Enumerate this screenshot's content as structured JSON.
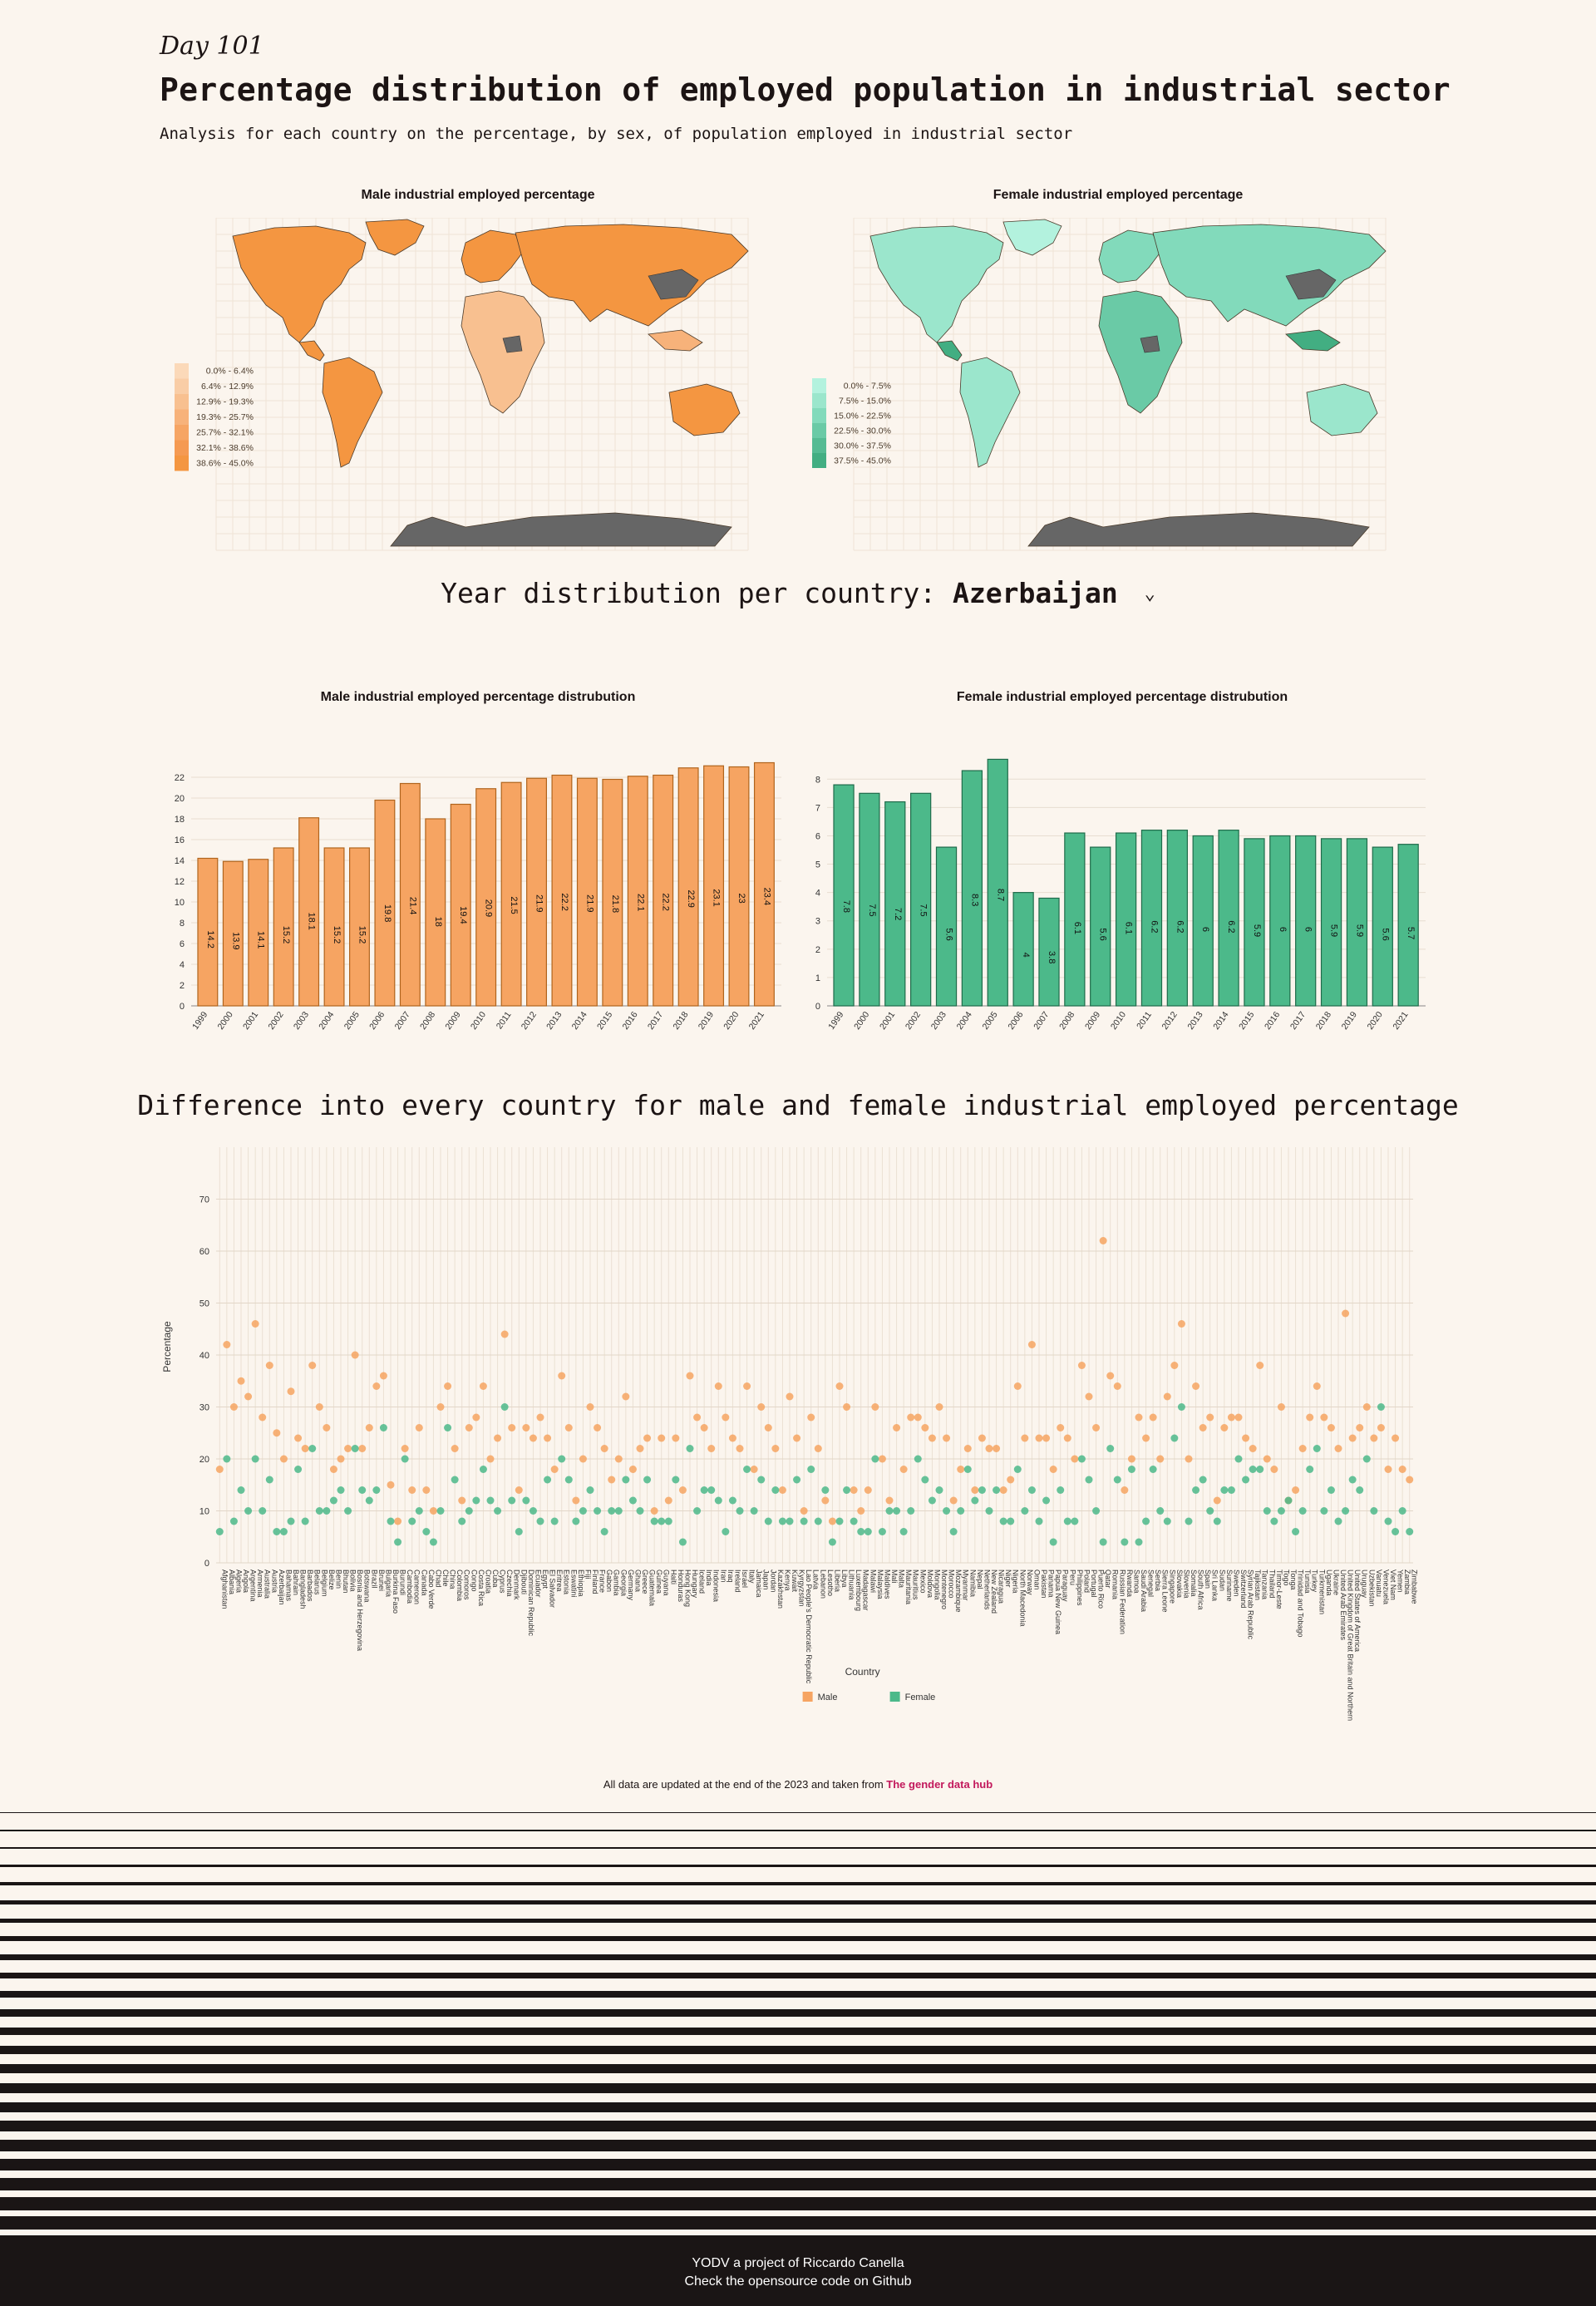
{
  "header": {
    "day": "Day 101",
    "title": "Percentage distribution of employed population in industrial sector",
    "subtitle": "Analysis for each country on the percentage, by sex, of population employed in industrial sector"
  },
  "maps": {
    "male": {
      "title": "Male industrial employed percentage",
      "legend": [
        "0.0% - 6.4%",
        "6.4% - 12.9%",
        "12.9% - 19.3%",
        "19.3% - 25.7%",
        "25.7% - 32.1%",
        "32.1% - 38.6%",
        "38.6% - 45.0%"
      ],
      "colors": [
        "#fbd9b9",
        "#f9cda6",
        "#f8c090",
        "#f7b27a",
        "#f6a564",
        "#f59a52",
        "#f49641"
      ]
    },
    "female": {
      "title": "Female industrial employed percentage",
      "legend": [
        "0.0% - 7.5%",
        "7.5% - 15.0%",
        "15.0% - 22.5%",
        "22.5% - 30.0%",
        "30.0% - 37.5%",
        "37.5% - 45.0%"
      ],
      "colors": [
        "#b3f2de",
        "#9be6cc",
        "#82dabb",
        "#6acaa6",
        "#55bb93",
        "#42ae82"
      ]
    },
    "nodata_color": "#666666"
  },
  "selector": {
    "label": "Year distribution per country:",
    "value": "Azerbaijan"
  },
  "colors": {
    "male": "#f6a462",
    "male_stroke": "#b0641d",
    "female": "#4cb98a",
    "female_stroke": "#1f6b4a"
  },
  "chart_data": [
    {
      "type": "bar",
      "title": "Male industrial employed percentage distrubution",
      "categories": [
        "1999",
        "2000",
        "2001",
        "2002",
        "2003",
        "2004",
        "2005",
        "2006",
        "2007",
        "2008",
        "2009",
        "2010",
        "2011",
        "2012",
        "2013",
        "2014",
        "2015",
        "2016",
        "2017",
        "2018",
        "2019",
        "2020",
        "2021"
      ],
      "values": [
        14.2,
        13.9,
        14.1,
        15.2,
        18.1,
        15.2,
        15.2,
        19.8,
        21.4,
        18,
        19.4,
        20.9,
        21.5,
        21.9,
        22.2,
        21.9,
        21.8,
        22.1,
        22.2,
        22.9,
        23.1,
        23,
        23.4
      ],
      "yticks": [
        0,
        2,
        4,
        6,
        8,
        10,
        12,
        14,
        16,
        18,
        20,
        22
      ],
      "ylim": [
        0,
        24
      ]
    },
    {
      "type": "bar",
      "title": "Female industrial employed percentage distrubution",
      "categories": [
        "1999",
        "2000",
        "2001",
        "2002",
        "2003",
        "2004",
        "2005",
        "2006",
        "2007",
        "2008",
        "2009",
        "2010",
        "2011",
        "2012",
        "2013",
        "2014",
        "2015",
        "2016",
        "2017",
        "2018",
        "2019",
        "2020",
        "2021"
      ],
      "values": [
        7.8,
        7.5,
        7.2,
        7.5,
        5.6,
        8.3,
        8.7,
        4,
        3.8,
        6.1,
        5.6,
        6.1,
        6.2,
        6.2,
        6,
        6.2,
        5.9,
        6,
        6,
        5.9,
        5.9,
        5.6,
        5.7
      ],
      "yticks": [
        0,
        1,
        2,
        3,
        4,
        5,
        6,
        7,
        8
      ],
      "ylim": [
        0,
        8.8
      ]
    },
    {
      "type": "scatter",
      "title": "Difference into every country for male and female industrial employed percentage",
      "xlabel": "Country",
      "ylabel": "Percentage",
      "yticks": [
        0,
        10,
        20,
        30,
        40,
        50,
        60,
        70
      ],
      "ylim": [
        0,
        80
      ],
      "legend": [
        "Male",
        "Female"
      ],
      "categories": [
        "Afghanistan",
        "Albania",
        "Algeria",
        "Angola",
        "Argentina",
        "Armenia",
        "Australia",
        "Austria",
        "Azerbaijan",
        "Bahamas",
        "Bahrain",
        "Bangladesh",
        "Barbados",
        "Belarus",
        "Belgium",
        "Belize",
        "Benin",
        "Bhutan",
        "Bolivia",
        "Bosnia and Herzegovina",
        "Botswana",
        "Brazil",
        "Brunei",
        "Bulgaria",
        "Burkina Faso",
        "Burundi",
        "Cambodia",
        "Cameroon",
        "Canada",
        "Cabo Verde",
        "Chad",
        "Chile",
        "China",
        "Colombia",
        "Comoros",
        "Congo",
        "Costa Rica",
        "Croatia",
        "Cuba",
        "Cyprus",
        "Czechia",
        "Denmark",
        "Djibouti",
        "Dominican Republic",
        "Ecuador",
        "Egypt",
        "El Salvador",
        "Eritrea",
        "Estonia",
        "Eswatini",
        "Ethiopia",
        "Fiji",
        "Finland",
        "France",
        "Gabon",
        "Gambia",
        "Georgia",
        "Germany",
        "Ghana",
        "Greece",
        "Guatemala",
        "Guinea",
        "Guyana",
        "Haiti",
        "Honduras",
        "Hong Kong",
        "Hungary",
        "Iceland",
        "India",
        "Indonesia",
        "Iran",
        "Iraq",
        "Ireland",
        "Israel",
        "Italy",
        "Jamaica",
        "Japan",
        "Jordan",
        "Kazakhstan",
        "Kenya",
        "Kuwait",
        "Kyrgyzstan",
        "Lao People's Democratic Republic",
        "Latvia",
        "Lebanon",
        "Lesotho",
        "Liberia",
        "Libya",
        "Lithuania",
        "Luxembourg",
        "Madagascar",
        "Malawi",
        "Malaysia",
        "Maldives",
        "Mali",
        "Malta",
        "Mauritania",
        "Mauritius",
        "Mexico",
        "Moldova",
        "Mongolia",
        "Montenegro",
        "Morocco",
        "Mozambique",
        "Myanmar",
        "Namibia",
        "Nepal",
        "Netherlands",
        "New Zealand",
        "Nicaragua",
        "Niger",
        "Nigeria",
        "North Macedonia",
        "Norway",
        "Oman",
        "Pakistan",
        "Panama",
        "Papua New Guinea",
        "Paraguay",
        "Peru",
        "Philippines",
        "Poland",
        "Portugal",
        "Puerto Rico",
        "Qatar",
        "Romania",
        "Russian Federation",
        "Rwanda",
        "Samoa",
        "Saudi Arabia",
        "Senegal",
        "Serbia",
        "Sierra Leone",
        "Singapore",
        "Slovakia",
        "Slovenia",
        "Somalia",
        "South Africa",
        "Spain",
        "Sri Lanka",
        "Sudan",
        "Suriname",
        "Sweden",
        "Switzerland",
        "Syrian Arab Republic",
        "Tajikistan",
        "Tanzania",
        "Thailand",
        "Timor-Leste",
        "Togo",
        "Tonga",
        "Trinidad and Tobago",
        "Tunisia",
        "Turkey",
        "Turkmenistan",
        "Uganda",
        "Ukraine",
        "United Arab Emirates",
        "United Kingdom of Great Britain and Northern Ireland",
        "United States of America",
        "Uruguay",
        "Uzbekistan",
        "Vanuatu",
        "Venezuela",
        "Viet Nam",
        "Yemen",
        "Zambia",
        "Zimbabwe"
      ],
      "series": [
        {
          "name": "Male",
          "values": [
            18,
            42,
            30,
            35,
            32,
            46,
            28,
            38,
            25,
            20,
            33,
            24,
            22,
            38,
            30,
            26,
            18,
            20,
            22,
            40,
            22,
            26,
            34,
            36,
            15,
            8,
            22,
            14,
            26,
            14,
            10,
            30,
            34,
            22,
            12,
            26,
            28,
            34,
            20,
            24,
            44,
            26,
            14,
            26,
            24,
            28,
            24,
            18,
            36,
            26,
            12,
            20,
            30,
            26,
            22,
            16,
            20,
            32,
            18,
            22,
            24,
            10,
            24,
            12,
            24,
            14,
            36,
            28,
            26,
            22,
            34,
            28,
            24,
            22,
            34,
            18,
            30,
            26,
            22,
            14,
            32,
            24,
            10,
            28,
            22,
            12,
            8,
            34,
            30,
            14,
            10,
            14,
            30,
            20,
            12,
            26,
            18,
            28,
            28,
            26,
            24,
            30,
            24,
            12,
            18,
            22,
            14,
            24,
            22,
            22,
            14,
            16,
            34,
            24,
            42,
            24,
            24,
            18,
            26,
            24,
            20,
            38,
            32,
            26,
            62,
            36,
            34,
            14,
            20,
            28,
            24,
            28,
            20,
            32,
            38,
            46,
            20,
            34,
            26,
            28,
            12,
            26,
            28,
            28,
            24,
            22,
            38,
            20,
            18,
            30,
            12,
            14,
            22,
            28,
            34,
            28,
            26,
            22,
            48,
            24,
            26,
            30,
            24,
            26,
            18,
            24,
            18,
            16
          ]
        },
        {
          "name": "Female",
          "values": [
            6,
            20,
            8,
            14,
            10,
            20,
            10,
            16,
            6,
            6,
            8,
            18,
            8,
            22,
            10,
            10,
            12,
            14,
            10,
            22,
            14,
            12,
            14,
            26,
            8,
            4,
            20,
            8,
            10,
            6,
            4,
            10,
            26,
            16,
            8,
            10,
            12,
            18,
            12,
            10,
            30,
            12,
            6,
            12,
            10,
            8,
            16,
            8,
            20,
            16,
            8,
            10,
            14,
            10,
            6,
            10,
            10,
            16,
            12,
            10,
            16,
            8,
            8,
            8,
            16,
            4,
            22,
            10,
            14,
            14,
            12,
            6,
            12,
            10,
            18,
            10,
            16,
            8,
            14,
            8,
            8,
            16,
            8,
            18,
            8,
            14,
            4,
            8,
            14,
            8,
            6,
            6,
            20,
            6,
            10,
            10,
            6,
            10,
            20,
            16,
            12,
            14,
            10,
            6,
            10,
            18,
            12,
            14,
            10,
            14,
            8,
            8,
            18,
            10,
            14,
            8,
            12,
            4,
            14,
            8,
            8,
            20,
            16,
            10,
            4,
            22,
            16,
            4,
            18,
            4,
            8,
            18,
            10,
            8,
            24,
            30,
            8,
            14,
            16,
            10,
            8,
            14,
            14,
            20,
            16,
            18,
            18,
            10,
            8,
            10,
            12,
            6,
            10,
            18,
            22,
            10,
            14,
            8,
            10,
            16,
            14,
            20,
            10,
            30,
            8,
            6,
            10,
            6
          ]
        }
      ]
    }
  ],
  "footer": {
    "note": "All data are updated at the end of the 2023 and taken from",
    "source_link": "The gender data hub",
    "line1": "YODV a project of Riccardo Canella",
    "line2": "Check the opensource code on Github"
  }
}
